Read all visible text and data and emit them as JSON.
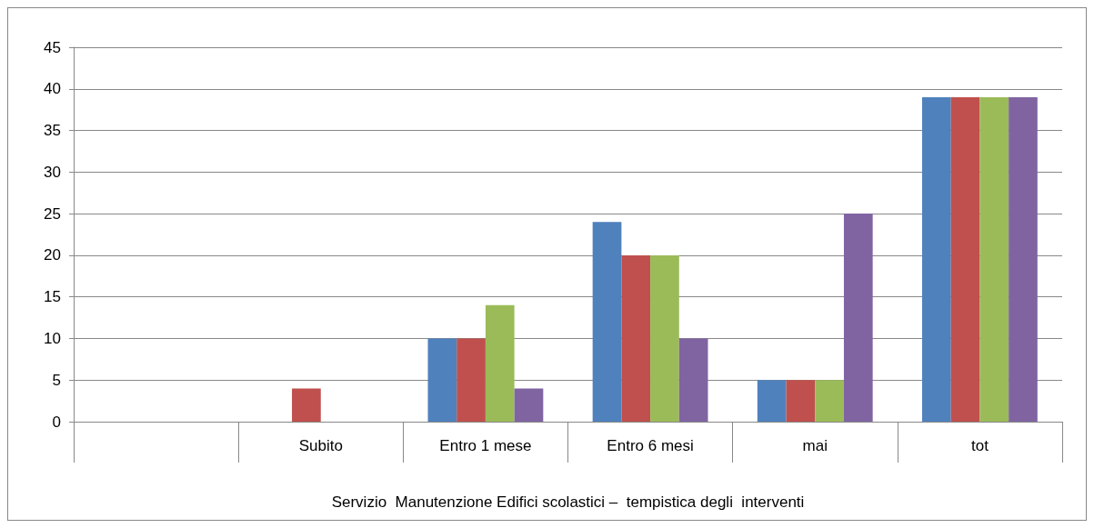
{
  "chart_data": {
    "type": "bar",
    "xlabel": "Servizio  Manutenzione Edifici scolastici –  tempistica degli  interventi",
    "categories": [
      null,
      "Subito",
      "Entro 1 mese",
      "Entro 6 mesi",
      "mai",
      "tot"
    ],
    "series": [
      {
        "color": "#4f81bd",
        "values": [
          null,
          null,
          10,
          24,
          5,
          39
        ]
      },
      {
        "color": "#c0504d",
        "values": [
          null,
          4,
          10,
          20,
          5,
          39
        ]
      },
      {
        "color": "#9bbb59",
        "values": [
          null,
          null,
          14,
          20,
          5,
          39
        ]
      },
      {
        "color": "#8064a2",
        "values": [
          null,
          null,
          4,
          10,
          25,
          39
        ]
      }
    ],
    "ylim": [
      0,
      45
    ],
    "yticks": [
      0,
      5,
      10,
      15,
      20,
      25,
      30,
      35,
      40,
      45
    ],
    "grid": "y"
  }
}
